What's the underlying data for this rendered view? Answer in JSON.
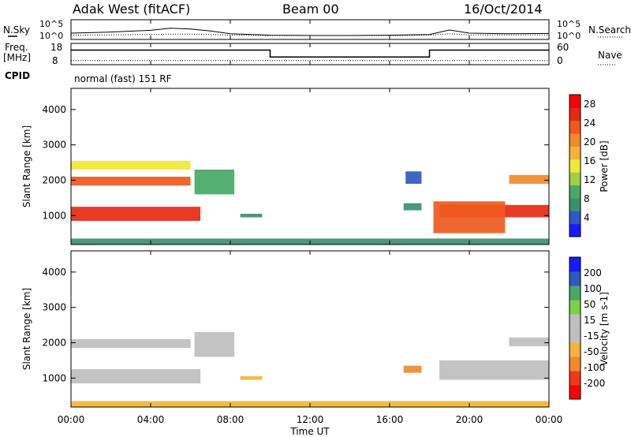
{
  "header": {
    "station": "Adak West (fitACF)",
    "beam": "Beam 00",
    "date": "16/Oct/2014"
  },
  "nsky_panel": {
    "left_label": "N.Sky",
    "right_label": "N.Search",
    "left_ticks": [
      "10^5",
      "10^0"
    ],
    "right_ticks": [
      "10^5",
      "10^0"
    ]
  },
  "freq_panel": {
    "left_label_top": "Freq.",
    "left_label_bottom": "[MHz]",
    "right_label": "Nave",
    "left_ticks": [
      "18",
      "8"
    ],
    "right_ticks": [
      "60",
      "0"
    ],
    "cpid_label": "CPID",
    "cpid_text": "normal (fast) 151 RF"
  },
  "colors": {
    "power_scale": [
      "#1a1aff",
      "#2f58c0",
      "#3b8f6e",
      "#48a866",
      "#9ed041",
      "#f0e63c",
      "#f4b43a",
      "#f08a2c",
      "#ee5a1e",
      "#e62a12",
      "#ff0000"
    ],
    "velocity_scale": [
      "#ff0000",
      "#ee3a1a",
      "#f08a2c",
      "#f4b43a",
      "#bfbfbf",
      "#bfbfbf",
      "#7ed04a",
      "#48a866",
      "#2f58c0",
      "#1a1aff"
    ],
    "ground_scatter": "#bebebe"
  },
  "chart_data": [
    {
      "type": "line",
      "title": "Adak West (fitACF) Beam 00 16/Oct/2014",
      "panel": "N.Sky / N.Search",
      "xlabel": "",
      "ylabel": "N.Sky",
      "ylabel_right": "N.Search",
      "ylim_log10": [
        0,
        5
      ],
      "x_hours": [
        0,
        2,
        4,
        5,
        6,
        7,
        8,
        10,
        12,
        14,
        16,
        18,
        19,
        20,
        22,
        24
      ],
      "series": [
        {
          "name": "N.Sky",
          "values_log10": [
            1.6,
            1.9,
            2.4,
            3.0,
            2.8,
            2.2,
            1.4,
            1.0,
            0.9,
            0.9,
            1.0,
            1.2,
            2.5,
            1.6,
            1.4,
            1.5
          ]
        },
        {
          "name": "N.Search",
          "values_log10": [
            1.0,
            1.1,
            1.2,
            1.3,
            1.3,
            1.2,
            1.0,
            0.9,
            0.9,
            0.9,
            0.9,
            1.0,
            1.4,
            1.1,
            1.1,
            1.1
          ]
        }
      ]
    },
    {
      "type": "line",
      "panel": "Freq. / Nave",
      "ylabel": "Freq. [MHz]",
      "ylabel_right": "Nave",
      "ylim": [
        8,
        18
      ],
      "ylim_right": [
        0,
        60
      ],
      "x_hours": [
        0,
        10,
        10,
        18,
        18,
        24
      ],
      "series": [
        {
          "name": "Freq.",
          "values": [
            15.5,
            15.5,
            11.5,
            11.5,
            15.5,
            15.5
          ]
        },
        {
          "name": "Nave",
          "values": [
            9,
            9,
            9,
            9,
            9,
            9
          ]
        }
      ]
    },
    {
      "type": "heatmap",
      "panel": "Power",
      "xlabel": "Time UT",
      "ylabel": "Slant Range [km]",
      "xlim_hours": [
        0,
        24
      ],
      "ylim": [
        180,
        4600
      ],
      "xticks": [
        "00:00",
        "04:00",
        "08:00",
        "12:00",
        "16:00",
        "20:00",
        "00:00"
      ],
      "yticks": [
        1000,
        2000,
        3000,
        4000
      ],
      "colorbar_label": "Power [dB]",
      "colorbar_ticks": [
        4,
        8,
        12,
        16,
        20,
        24,
        28
      ],
      "colorbar_range": [
        0,
        30
      ],
      "regions": [
        {
          "t0": 0,
          "t1": 6.5,
          "r0": 850,
          "r1": 1250,
          "value": 26
        },
        {
          "t0": 0,
          "t1": 6,
          "r0": 1850,
          "r1": 2100,
          "value": 22
        },
        {
          "t0": 0,
          "t1": 6,
          "r0": 2300,
          "r1": 2550,
          "value": 14
        },
        {
          "t0": 6.2,
          "t1": 8.2,
          "r0": 1600,
          "r1": 2300,
          "value": 10
        },
        {
          "t0": 8.5,
          "t1": 9.6,
          "r0": 950,
          "r1": 1050,
          "value": 6
        },
        {
          "t0": 16.7,
          "t1": 17.6,
          "r0": 1150,
          "r1": 1350,
          "value": 6
        },
        {
          "t0": 16.8,
          "t1": 17.6,
          "r0": 1900,
          "r1": 2250,
          "value": 5
        },
        {
          "t0": 18.5,
          "t1": 24,
          "r0": 950,
          "r1": 1300,
          "value": 25
        },
        {
          "t0": 18.2,
          "t1": 21.8,
          "r0": 500,
          "r1": 1400,
          "value": 22
        },
        {
          "t0": 22,
          "t1": 24,
          "r0": 1900,
          "r1": 2150,
          "value": 20
        },
        {
          "t0": 0,
          "t1": 24,
          "r0": 180,
          "r1": 350,
          "value": 8
        }
      ]
    },
    {
      "type": "heatmap",
      "panel": "Velocity",
      "xlabel": "Time UT",
      "ylabel": "Slant Range [km]",
      "xlim_hours": [
        0,
        24
      ],
      "ylim": [
        180,
        4600
      ],
      "xticks": [
        "00:00",
        "04:00",
        "08:00",
        "12:00",
        "16:00",
        "20:00",
        "00:00"
      ],
      "yticks": [
        1000,
        2000,
        3000,
        4000
      ],
      "colorbar_label": "Velocity [m s-1]",
      "colorbar_tick_labels": [
        "200",
        "100",
        "50",
        "15",
        "-15",
        "-50",
        "-100",
        "-200"
      ],
      "regions": [
        {
          "t0": 0,
          "t1": 6.5,
          "r0": 850,
          "r1": 1250,
          "value": "ground scatter"
        },
        {
          "t0": 0,
          "t1": 6,
          "r0": 1850,
          "r1": 2100,
          "value": "ground scatter"
        },
        {
          "t0": 6.2,
          "t1": 8.2,
          "r0": 1600,
          "r1": 2300,
          "value": "ground scatter"
        },
        {
          "t0": 8.5,
          "t1": 9.6,
          "r0": 950,
          "r1": 1050,
          "value": -30
        },
        {
          "t0": 16.7,
          "t1": 17.6,
          "r0": 1150,
          "r1": 1350,
          "value": -60
        },
        {
          "t0": 18.5,
          "t1": 24,
          "r0": 950,
          "r1": 1500,
          "value": "ground scatter"
        },
        {
          "t0": 22,
          "t1": 24,
          "r0": 1900,
          "r1": 2150,
          "value": "ground scatter"
        },
        {
          "t0": 0,
          "t1": 24,
          "r0": 180,
          "r1": 350,
          "value": -40
        }
      ]
    }
  ]
}
